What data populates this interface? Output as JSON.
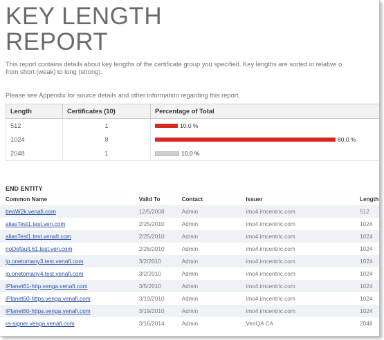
{
  "report": {
    "title": "KEY LENGTH\nREPORT",
    "description": "This report contains details about key lengths of the certificate group you specified. Key lengths are sorted in relative o\nfrom short (weak) to long (strong).",
    "appendix_note": "Please see Appendix for source details and other information regarding this report."
  },
  "summary": {
    "headers": [
      "Length",
      "Certificates (10)",
      "Percentage of Total"
    ],
    "rows": [
      {
        "length": "512",
        "certificates": "1",
        "percent_label": "10.0 %",
        "percent": 10,
        "color": "#d42a24"
      },
      {
        "length": "1024",
        "certificates": "8",
        "percent_label": "80.0 %",
        "percent": 80,
        "color": "#d42a24"
      },
      {
        "length": "2048",
        "certificates": "1",
        "percent_label": "10.0 %",
        "percent": 10,
        "color": "#cfcfcf"
      }
    ]
  },
  "end_entity": {
    "section_title": "END ENTITY",
    "headers": [
      "Common Name",
      "Valid To",
      "Contact",
      "Issuer",
      "Length"
    ],
    "rows": [
      {
        "common_name": "beaW2k.venafi.com",
        "valid_to": "12/5/2008",
        "contact": "Admin",
        "issuer": "imo4.imcentric.com",
        "length": "512"
      },
      {
        "common_name": "aliasTest1.test.ven.com",
        "valid_to": "2/25/2010",
        "contact": "Admin",
        "issuer": "imo4.imcentric.com",
        "length": "1024"
      },
      {
        "common_name": "aliasTest1.test.venafi.com",
        "valid_to": "2/25/2010",
        "contact": "Admin",
        "issuer": "imo4.imcentric.com",
        "length": "1024"
      },
      {
        "common_name": "noDefault.61.test.ven.com",
        "valid_to": "2/26/2010",
        "contact": "Admin",
        "issuer": "imo4.imcentric.com",
        "length": "1024"
      },
      {
        "common_name": "ip.onetomany3.test.venafi.com",
        "valid_to": "3/2/2010",
        "contact": "Admin",
        "issuer": "imo4.imcentric.com",
        "length": "1024"
      },
      {
        "common_name": "ip.onetomany4.test.venafi.com",
        "valid_to": "3/2/2010",
        "contact": "Admin",
        "issuer": "imo4.imcentric.com",
        "length": "1024"
      },
      {
        "common_name": "iPlanet61-http.venga.venafi.com",
        "valid_to": "3/5/2010",
        "contact": "Admin",
        "issuer": "imo4.imcentric.com",
        "length": "1024"
      },
      {
        "common_name": "iPlanet60-https.venga.venafi.com",
        "valid_to": "3/19/2010",
        "contact": "Admin",
        "issuer": "imo4.imcentric.com",
        "length": "1024"
      },
      {
        "common_name": "iPlanet60-https.venga.venafi.com",
        "valid_to": "3/19/2010",
        "contact": "Admin",
        "issuer": "imo4.imcentric.com",
        "length": "1024"
      },
      {
        "common_name": "ra-signer.venga.venafi.com",
        "valid_to": "3/16/2014",
        "contact": "Admin",
        "issuer": "VenQA CA",
        "length": "2048"
      }
    ]
  }
}
